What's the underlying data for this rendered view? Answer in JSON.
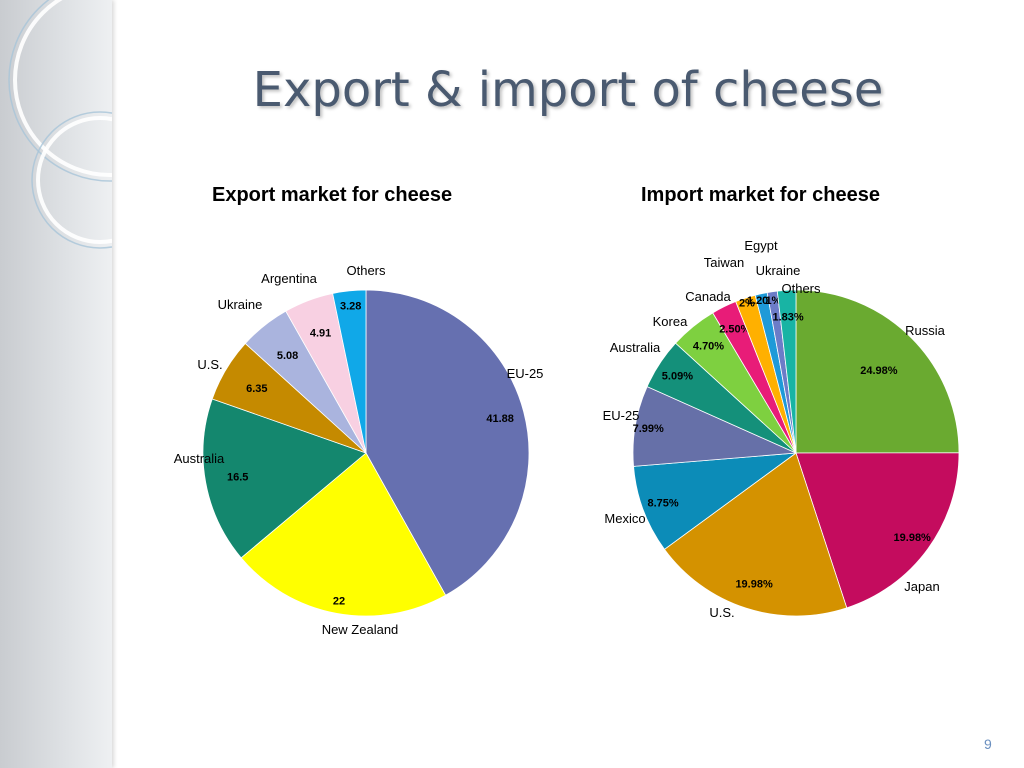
{
  "slide": {
    "title": "Export & import of cheese",
    "page_number": "9"
  },
  "chart_data": [
    {
      "type": "pie",
      "title": "Export market for cheese",
      "slices": [
        {
          "label": "EU-25",
          "value": 41.88,
          "value_label": "41.88",
          "color": "#6670b0"
        },
        {
          "label": "New Zealand",
          "value": 22,
          "value_label": "22",
          "color": "#ffff00"
        },
        {
          "label": "Australia",
          "value": 16.5,
          "value_label": "16.5",
          "color": "#14876e"
        },
        {
          "label": "U.S.",
          "value": 6.35,
          "value_label": "6.35",
          "color": "#c58a00"
        },
        {
          "label": "Ukraine",
          "value": 5.08,
          "value_label": "5.08",
          "color": "#aab4de"
        },
        {
          "label": "Argentina",
          "value": 4.91,
          "value_label": "4.91",
          "color": "#f8d0e2"
        },
        {
          "label": "Others",
          "value": 3.28,
          "value_label": "3.28",
          "color": "#10a8e8"
        }
      ]
    },
    {
      "type": "pie",
      "title": "Import market for cheese",
      "slices": [
        {
          "label": "Russia",
          "value": 24.98,
          "value_label": "24.98%",
          "color": "#6aaa30"
        },
        {
          "label": "Japan",
          "value": 19.98,
          "value_label": "19.98%",
          "color": "#c40c5e"
        },
        {
          "label": "U.S.",
          "value": 19.98,
          "value_label": "19.98%",
          "color": "#d49200"
        },
        {
          "label": "Mexico",
          "value": 8.75,
          "value_label": "8.75%",
          "color": "#0c8cb8"
        },
        {
          "label": "EU-25",
          "value": 7.99,
          "value_label": "7.99%",
          "color": "#6670a8"
        },
        {
          "label": "Australia",
          "value": 5.09,
          "value_label": "5.09%",
          "color": "#14907a"
        },
        {
          "label": "Korea",
          "value": 4.7,
          "value_label": "4.70%",
          "color": "#7ed040"
        },
        {
          "label": "Canada",
          "value": 2.5,
          "value_label": "2.50%",
          "color": "#e81c78"
        },
        {
          "label": "Taiwan",
          "value": 2,
          "value_label": "2%",
          "color": "#ffb000"
        },
        {
          "label": "Egypt",
          "value": 1.2,
          "value_label": "1.20%",
          "color": "#1e9ad8"
        },
        {
          "label": "Ukraine",
          "value": 1,
          "value_label": "1%",
          "color": "#6c7cc8"
        },
        {
          "label": "Others",
          "value": 1.83,
          "value_label": "1.83%",
          "color": "#18b4a4"
        }
      ]
    }
  ]
}
